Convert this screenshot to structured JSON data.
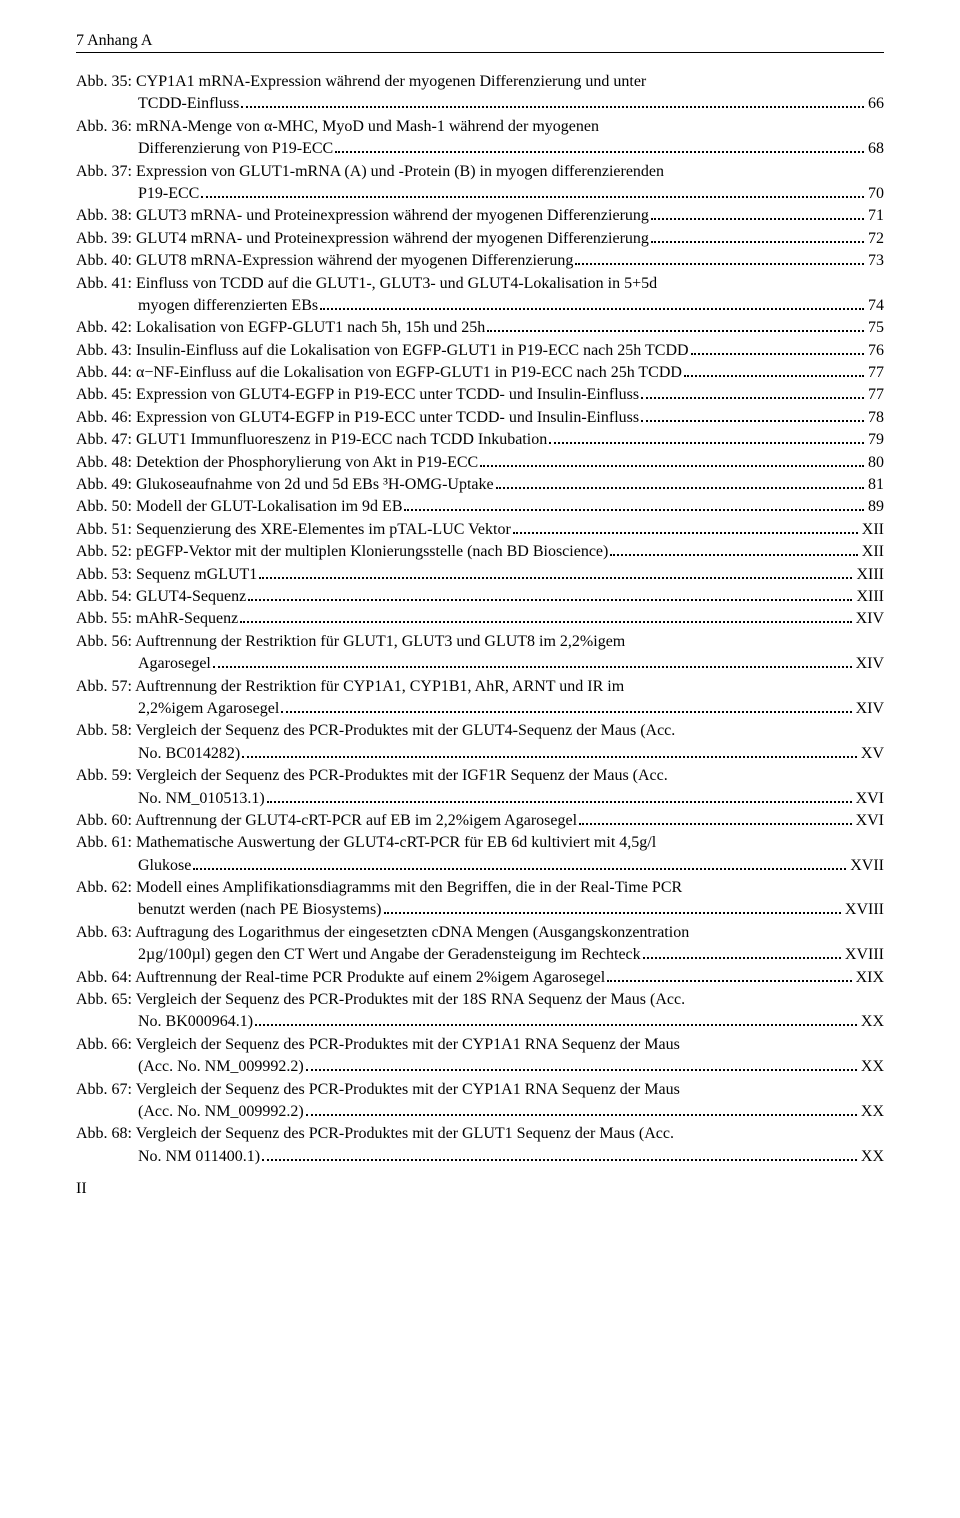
{
  "header": "7 Anhang A",
  "footer": "II",
  "entries": [
    {
      "lines": [
        "Abb. 35: CYP1A1 mRNA-Expression während der myogenen Differenzierung und unter",
        "TCDD-Einfluss"
      ],
      "page": "66"
    },
    {
      "lines": [
        "Abb. 36: mRNA-Menge von α-MHC, MyoD und Mash-1 während der myogenen",
        "Differenzierung von P19-ECC"
      ],
      "page": "68"
    },
    {
      "lines": [
        "Abb. 37: Expression von GLUT1-mRNA (A) und -Protein (B) in myogen differenzierenden",
        "P19-ECC"
      ],
      "page": "70"
    },
    {
      "lines": [
        "Abb. 38: GLUT3 mRNA- und Proteinexpression während der myogenen Differenzierung"
      ],
      "page": "71"
    },
    {
      "lines": [
        "Abb. 39: GLUT4 mRNA- und Proteinexpression während der myogenen Differenzierung"
      ],
      "page": "72"
    },
    {
      "lines": [
        "Abb. 40: GLUT8 mRNA-Expression während der myogenen Differenzierung"
      ],
      "page": "73"
    },
    {
      "lines": [
        "Abb. 41: Einfluss von TCDD auf die GLUT1-, GLUT3- und GLUT4-Lokalisation in 5+5d",
        "myogen differenzierten EBs"
      ],
      "page": "74"
    },
    {
      "lines": [
        "Abb. 42: Lokalisation von EGFP-GLUT1 nach 5h, 15h und 25h"
      ],
      "page": "75"
    },
    {
      "lines": [
        "Abb. 43: Insulin-Einfluss auf die Lokalisation von EGFP-GLUT1 in P19-ECC nach 25h TCDD"
      ],
      "page": "76"
    },
    {
      "lines": [
        "Abb. 44: α−NF-Einfluss auf die Lokalisation von EGFP-GLUT1 in P19-ECC nach 25h TCDD"
      ],
      "page": "77"
    },
    {
      "lines": [
        "Abb. 45: Expression von GLUT4-EGFP in P19-ECC unter TCDD- und Insulin-Einfluss"
      ],
      "page": "77"
    },
    {
      "lines": [
        "Abb. 46: Expression von GLUT4-EGFP in P19-ECC unter TCDD- und Insulin-Einfluss"
      ],
      "page": "78"
    },
    {
      "lines": [
        "Abb. 47: GLUT1 Immunfluoreszenz in P19-ECC nach TCDD Inkubation"
      ],
      "page": "79"
    },
    {
      "lines": [
        "Abb. 48: Detektion der Phosphorylierung von Akt in P19-ECC"
      ],
      "page": "80"
    },
    {
      "lines": [
        "Abb. 49: Glukoseaufnahme von 2d und 5d EBs ³H-OMG-Uptake"
      ],
      "page": "81"
    },
    {
      "lines": [
        "Abb. 50: Modell der GLUT-Lokalisation im 9d EB"
      ],
      "page": "89"
    },
    {
      "lines": [
        "Abb. 51: Sequenzierung des XRE-Elementes im pTAL-LUC Vektor"
      ],
      "page": " XII"
    },
    {
      "lines": [
        "Abb. 52: pEGFP-Vektor mit der multiplen Klonierungsstelle (nach BD Bioscience)"
      ],
      "page": " XII"
    },
    {
      "lines": [
        "Abb. 53: Sequenz mGLUT1"
      ],
      "page": " XIII"
    },
    {
      "lines": [
        "Abb. 54: GLUT4-Sequenz"
      ],
      "page": " XIII"
    },
    {
      "lines": [
        "Abb. 55: mAhR-Sequenz"
      ],
      "page": "XIV"
    },
    {
      "lines": [
        "Abb. 56: Auftrennung der Restriktion für GLUT1, GLUT3 und GLUT8 im 2,2%igem",
        "Agarosegel"
      ],
      "page": "XIV"
    },
    {
      "lines": [
        "Abb. 57: Auftrennung der Restriktion für CYP1A1, CYP1B1, AhR, ARNT und IR im",
        "2,2%igem Agarosegel"
      ],
      "page": "XIV"
    },
    {
      "lines": [
        "Abb. 58: Vergleich der Sequenz des PCR-Produktes mit der GLUT4-Sequenz der Maus (Acc.",
        "No. BC014282)"
      ],
      "page": "XV"
    },
    {
      "lines": [
        "Abb. 59: Vergleich der Sequenz des PCR-Produktes mit der IGF1R Sequenz der Maus (Acc.",
        "No. NM_010513.1)"
      ],
      "page": "XVI"
    },
    {
      "lines": [
        "Abb. 60: Auftrennung der GLUT4-cRT-PCR auf EB im 2,2%igem Agarosegel"
      ],
      "page": "XVI"
    },
    {
      "lines": [
        "Abb. 61: Mathematische Auswertung der GLUT4-cRT-PCR für EB 6d kultiviert mit 4,5g/l",
        "Glukose"
      ],
      "page": " XVII"
    },
    {
      "lines": [
        "Abb. 62: Modell eines Amplifikationsdiagramms mit den Begriffen, die in der Real-Time PCR",
        "benutzt werden (nach PE Biosystems)"
      ],
      "page": " XVIII"
    },
    {
      "lines": [
        "Abb. 63: Auftragung des Logarithmus der eingesetzten cDNA Mengen (Ausgangskonzentration",
        "2µg/100µl) gegen den CT Wert und Angabe der Geradensteigung im Rechteck"
      ],
      "page": " XVIII"
    },
    {
      "lines": [
        "Abb. 64: Auftrennung der Real-time PCR Produkte auf einem 2%igem Agarosegel"
      ],
      "page": "XIX"
    },
    {
      "lines": [
        "Abb. 65: Vergleich der Sequenz des PCR-Produktes mit der 18S RNA Sequenz der Maus (Acc.",
        "No. BK000964.1)"
      ],
      "page": "XX"
    },
    {
      "lines": [
        "Abb. 66: Vergleich der Sequenz des PCR-Produktes mit der CYP1A1 RNA Sequenz der Maus",
        "(Acc. No. NM_009992.2)"
      ],
      "page": "XX"
    },
    {
      "lines": [
        "Abb. 67: Vergleich der Sequenz des PCR-Produktes mit der CYP1A1 RNA Sequenz der Maus",
        "(Acc. No. NM_009992.2)"
      ],
      "page": "XX"
    },
    {
      "lines": [
        "Abb. 68: Vergleich der Sequenz des PCR-Produktes mit der GLUT1 Sequenz der Maus (Acc.",
        "No. NM 011400.1)"
      ],
      "page": "XX"
    }
  ]
}
